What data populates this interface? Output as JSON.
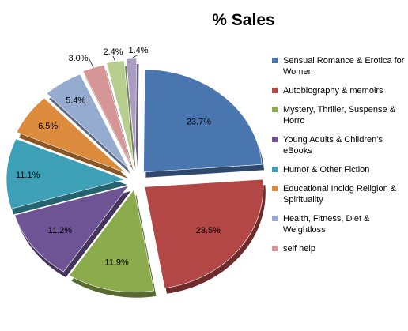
{
  "chart_data": {
    "type": "pie",
    "title": "% Sales",
    "style": "exploded 3d",
    "legend_position": "right",
    "slices": [
      {
        "name": "Sensual Romance & Erotica for Women",
        "value": 23.7,
        "label": "23.7%",
        "color": "#4a76b0"
      },
      {
        "name": "Autobiography & memoirs",
        "value": 23.5,
        "label": "23.5%",
        "color": "#b34745"
      },
      {
        "name": "Mystery, Thriller, Suspense & Horro",
        "value": 11.9,
        "label": "11.9%",
        "color": "#8cab4d"
      },
      {
        "name": "Young Adults & Children's eBooks",
        "value": 11.2,
        "label": "11.2%",
        "color": "#6e5495"
      },
      {
        "name": "Humor & Other Fiction",
        "value": 11.1,
        "label": "11.1%",
        "color": "#3ea0b7"
      },
      {
        "name": "Educational Incldg Religion & Spirituality",
        "value": 6.5,
        "label": "6.5%",
        "color": "#dc8a3c"
      },
      {
        "name": "Health, Fitness, Diet & Weightloss",
        "value": 5.4,
        "label": "5.4%",
        "color": "#95abd0"
      },
      {
        "name": "self help",
        "value": 3.0,
        "label": "3.0%",
        "color": "#d69695"
      },
      {
        "name": "",
        "value": 2.4,
        "label": "2.4%",
        "color": "#b7ce8f"
      },
      {
        "name": "",
        "value": 1.4,
        "label": "1.4%",
        "color": "#ab9cc4"
      }
    ]
  }
}
